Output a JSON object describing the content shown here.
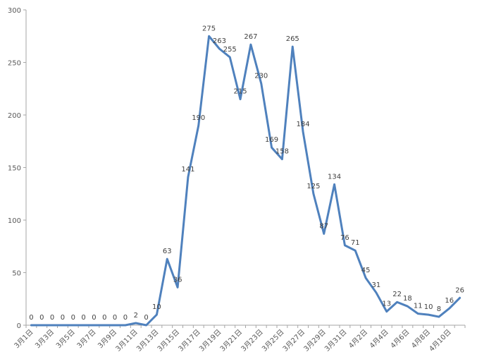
{
  "chart_data": {
    "type": "line",
    "title": "",
    "xlabel": "",
    "ylabel": "",
    "ylim": [
      0,
      300
    ],
    "yticks": [
      0,
      50,
      100,
      150,
      200,
      250,
      300
    ],
    "grid": false,
    "legend": "none",
    "line_color": "#4f81bd",
    "x": [
      "3月1日",
      "3月2日",
      "3月3日",
      "3月4日",
      "3月5日",
      "3月6日",
      "3月7日",
      "3月8日",
      "3月9日",
      "3月10日",
      "3月11日",
      "3月12日",
      "3月13日",
      "3月14日",
      "3月15日",
      "3月16日",
      "3月17日",
      "3月18日",
      "3月19日",
      "3月20日",
      "3月21日",
      "3月22日",
      "3月23日",
      "3月24日",
      "3月25日",
      "3月26日",
      "3月27日",
      "3月28日",
      "3月29日",
      "3月30日",
      "3月31日",
      "4月1日",
      "4月2日",
      "4月3日",
      "4月4日",
      "4月5日",
      "4月6日",
      "4月7日",
      "4月8日",
      "4月9日",
      "4月10日",
      "4月11日"
    ],
    "x_tick_labels": [
      "3月1日",
      "3月3日",
      "3月5日",
      "3月7日",
      "3月9日",
      "3月11日",
      "3月13日",
      "3月15日",
      "3月17日",
      "3月19日",
      "3月21日",
      "3月23日",
      "3月25日",
      "3月27日",
      "3月29日",
      "3月31日",
      "4月2日",
      "4月4日",
      "4月6日",
      "4月8日",
      "4月10日"
    ],
    "series": [
      {
        "values": [
          0,
          0,
          0,
          0,
          0,
          0,
          0,
          0,
          0,
          0,
          2,
          0,
          10,
          63,
          36,
          141,
          190,
          275,
          263,
          255,
          215,
          267,
          230,
          169,
          158,
          265,
          184,
          125,
          87,
          134,
          76,
          71,
          45,
          31,
          13,
          22,
          18,
          11,
          10,
          8,
          16,
          26
        ],
        "data_labels": [
          "0",
          "0",
          "0",
          "0",
          "0",
          "0",
          "0",
          "0",
          "0",
          "0",
          "2",
          "0",
          "10",
          "63",
          "36",
          "141",
          "190",
          "275",
          "263",
          "255",
          "215",
          "267",
          "230",
          "169",
          "158",
          "265",
          "184",
          "125",
          "87",
          "134",
          "76",
          "71",
          "45",
          "31",
          "13",
          "22",
          "18",
          "11",
          "10",
          "8",
          "16",
          "26"
        ]
      }
    ]
  }
}
